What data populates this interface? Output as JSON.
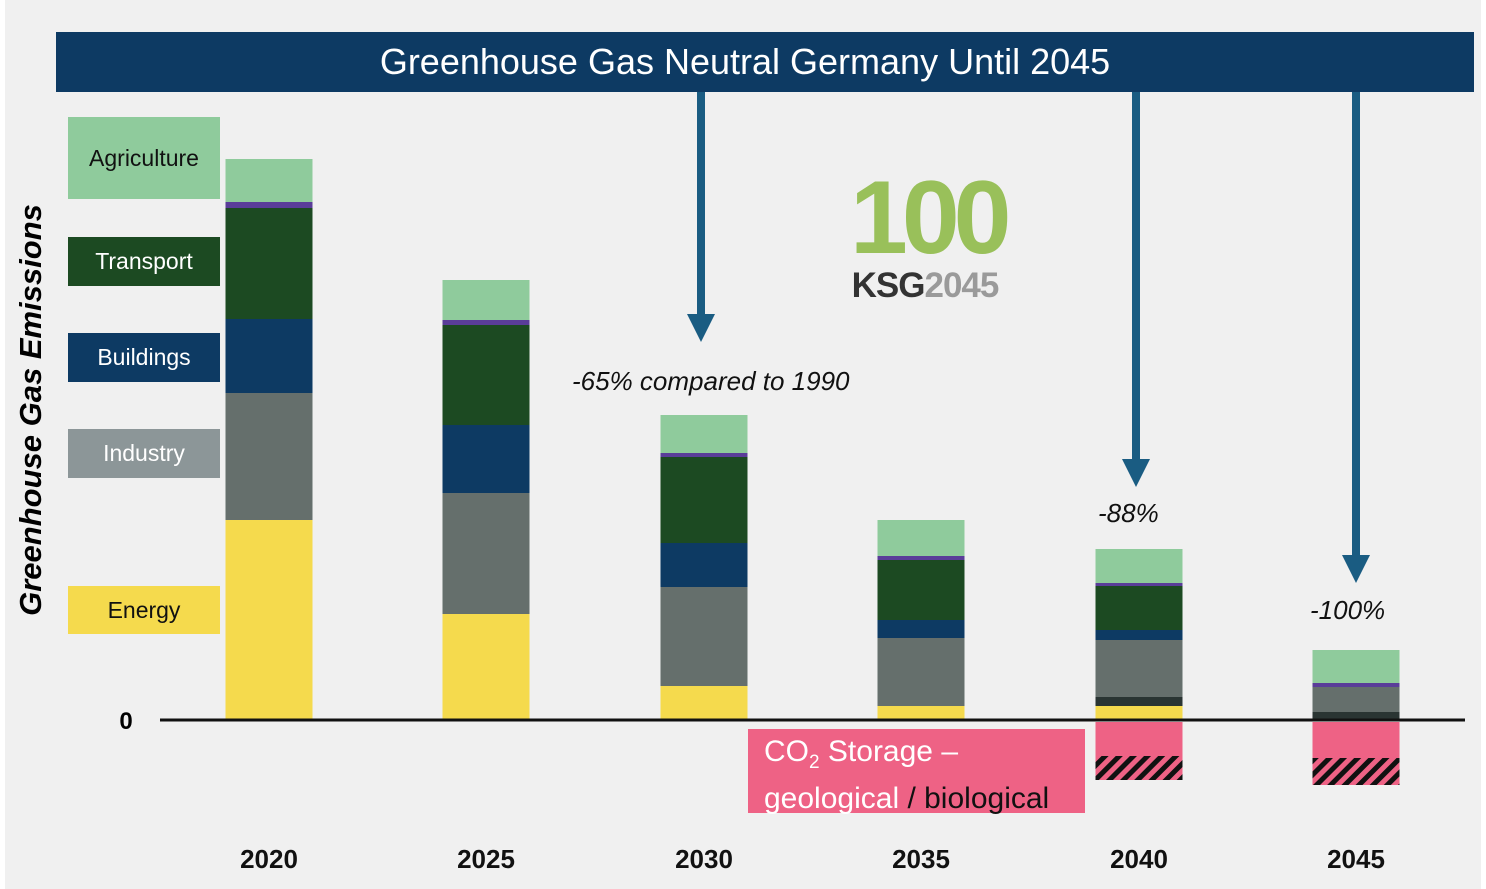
{
  "title": "Greenhouse Gas Neutral Germany Until 2045",
  "colors": {
    "title_bar": "#0d3a63",
    "background": "#f0f0f0",
    "arrow": "#1a5c82",
    "co2_storage": "#ee6285",
    "logo_green": "#99c05a"
  },
  "legend": [
    {
      "label": "Agriculture",
      "color": "#8fcb9c"
    },
    {
      "label": "Transport",
      "color": "#1c4a22"
    },
    {
      "label": "Buildings",
      "color": "#0d3a63"
    },
    {
      "label": "Industry",
      "color": "#8c9698"
    },
    {
      "label": "Energy",
      "color": "#f5da4d"
    }
  ],
  "logo": {
    "number": "100",
    "sub_a": "KSG",
    "sub_b": "2045"
  },
  "annotations": {
    "a2030": "-65% compared to 1990",
    "a2040": "-88%",
    "a2045": "-100%"
  },
  "co2_box": {
    "line1_prefix": "CO",
    "line1_sub": "2",
    "line1_suffix": " Storage  –",
    "line2_a": "geological",
    "line2_sep": "  / ",
    "line2_b": "biological"
  },
  "chart_data": {
    "type": "bar",
    "stacked": true,
    "ylabel": "Greenhouse Gas Emissions",
    "zero_label": "0",
    "categories": [
      "2020",
      "2025",
      "2030",
      "2035",
      "2040",
      "2045"
    ],
    "series": [
      {
        "name": "Energy",
        "color": "#f5da4d",
        "values": [
          200,
          106,
          34,
          14,
          14,
          0
        ]
      },
      {
        "name": "",
        "color": "#2a3533",
        "values": [
          0,
          0,
          0,
          0,
          9,
          8
        ]
      },
      {
        "name": "Industry",
        "color": "#656f6c",
        "values": [
          127,
          121,
          99,
          68,
          57,
          25
        ]
      },
      {
        "name": "Buildings",
        "color": "#0d3a63",
        "values": [
          74,
          68,
          44,
          18,
          10,
          0
        ]
      },
      {
        "name": "Transport",
        "color": "#1c4a22",
        "values": [
          111,
          100,
          86,
          60,
          44,
          0
        ]
      },
      {
        "name": "",
        "color": "#5a3d99",
        "values": [
          6,
          5,
          4,
          4,
          3,
          4
        ]
      },
      {
        "name": "Agriculture",
        "color": "#8fcb9c",
        "values": [
          43,
          40,
          38,
          36,
          34,
          33
        ]
      }
    ],
    "negative_series": [
      {
        "name": "CO2 storage geological",
        "color": "#ee6285",
        "values": [
          0,
          0,
          0,
          0,
          -34,
          -36
        ]
      },
      {
        "name": "CO2 storage biological",
        "color": "#111111",
        "pattern": "hatched",
        "values": [
          0,
          0,
          0,
          0,
          -24,
          -27
        ]
      }
    ],
    "ylim": [
      -64,
      600
    ],
    "grid": false
  }
}
